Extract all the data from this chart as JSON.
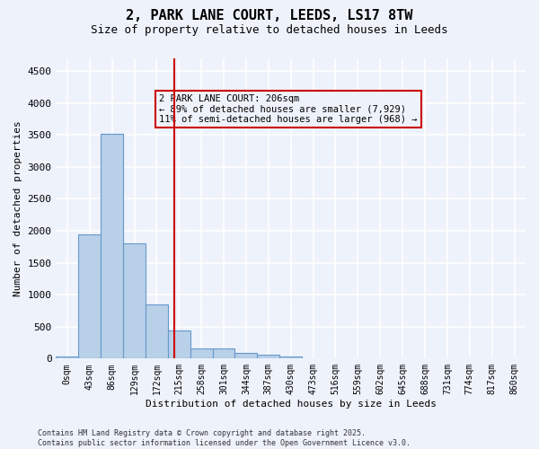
{
  "title_line1": "2, PARK LANE COURT, LEEDS, LS17 8TW",
  "title_line2": "Size of property relative to detached houses in Leeds",
  "xlabel": "Distribution of detached houses by size in Leeds",
  "ylabel": "Number of detached properties",
  "bar_values": [
    30,
    1950,
    3520,
    1800,
    850,
    440,
    165,
    160,
    90,
    60,
    30,
    0,
    0,
    0,
    0,
    0,
    0,
    0,
    0,
    0,
    0
  ],
  "bar_labels": [
    "0sqm",
    "43sqm",
    "86sqm",
    "129sqm",
    "172sqm",
    "215sqm",
    "258sqm",
    "301sqm",
    "344sqm",
    "387sqm",
    "430sqm",
    "473sqm",
    "516sqm",
    "559sqm",
    "602sqm",
    "645sqm",
    "688sqm",
    "731sqm",
    "774sqm",
    "817sqm",
    "860sqm"
  ],
  "bar_color": "#b8d0e8",
  "bar_edge_color": "#6699cc",
  "vline_color": "#cc0000",
  "annotation_text": "2 PARK LANE COURT: 206sqm\n← 89% of detached houses are smaller (7,929)\n11% of semi-detached houses are larger (968) →",
  "ylim": [
    0,
    4700
  ],
  "yticks": [
    0,
    500,
    1000,
    1500,
    2000,
    2500,
    3000,
    3500,
    4000,
    4500
  ],
  "footer_text": "Contains HM Land Registry data © Crown copyright and database right 2025.\nContains public sector information licensed under the Open Government Licence v3.0.",
  "background_color": "#eef2fb",
  "grid_color": "#ffffff"
}
